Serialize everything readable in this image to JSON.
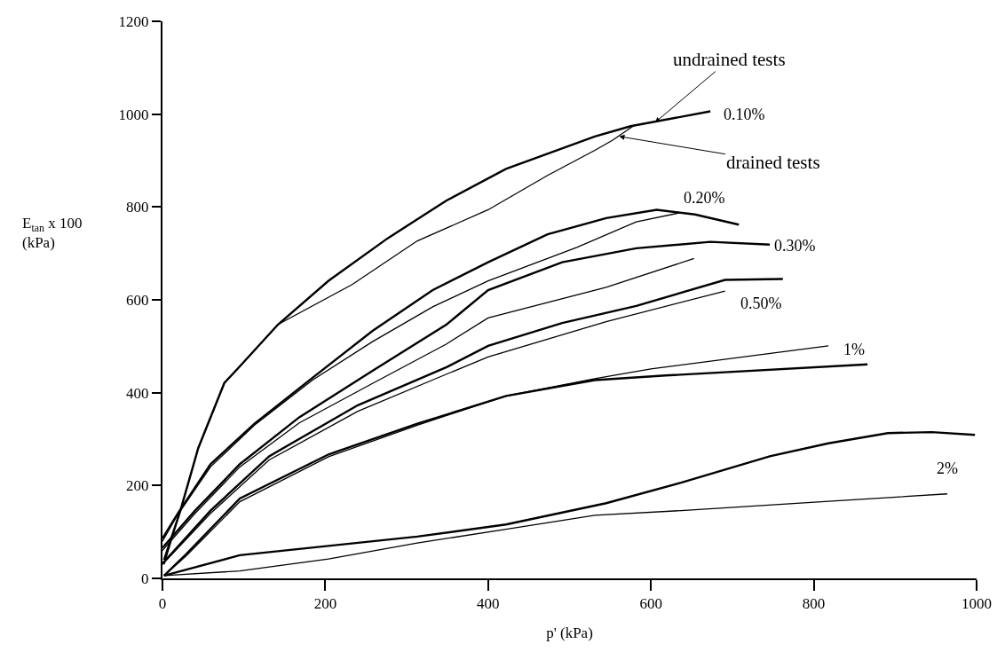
{
  "chart_data": {
    "type": "line",
    "xlabel": "p' (kPa)",
    "ylabel": "E$_{tan}$ x 100\n(kPa)",
    "xlim": [
      0,
      1000
    ],
    "xticks": [
      0,
      200,
      400,
      600,
      800,
      1000
    ],
    "ylim": [
      0,
      1200
    ],
    "yticks": [
      0,
      200,
      400,
      600,
      800,
      1000,
      1200
    ],
    "marker": "none",
    "line_style": "solid",
    "series": [
      {
        "color": "#000000",
        "x": [
          2,
          22,
          44,
          76,
          92,
          142,
          204,
          277,
          349,
          422,
          531,
          575,
          673
        ],
        "values": [
          40,
          146,
          281,
          421,
          451,
          547,
          641,
          733,
          814,
          882,
          952,
          974,
          1006
        ]
      },
      {
        "color": "#000000",
        "x": [
          2,
          22,
          44,
          76,
          92,
          142,
          233,
          313,
          400,
          473,
          531,
          553,
          578
        ],
        "values": [
          30,
          146,
          281,
          421,
          451,
          547,
          633,
          727,
          794,
          868,
          922,
          944,
          974
        ]
      },
      {
        "color": "#000000",
        "x": [
          0,
          19,
          59,
          113,
          185,
          258,
          332,
          400,
          473,
          545,
          607,
          654,
          708
        ],
        "values": [
          86,
          140,
          246,
          333,
          433,
          533,
          621,
          681,
          741,
          776,
          794,
          784,
          762
        ]
      },
      {
        "color": "#000000",
        "x": [
          0,
          19,
          59,
          113,
          185,
          258,
          332,
          400,
          509,
          582,
          637
        ],
        "values": [
          80,
          138,
          240,
          330,
          428,
          510,
          585,
          641,
          713,
          768,
          788
        ]
      },
      {
        "color": "#000000",
        "x": [
          0,
          40,
          95,
          168,
          258,
          349,
          400,
          491,
          582,
          673,
          746
        ],
        "values": [
          66,
          146,
          246,
          347,
          447,
          547,
          621,
          681,
          711,
          725,
          719
        ]
      },
      {
        "color": "#000000",
        "x": [
          0,
          40,
          95,
          168,
          258,
          349,
          400,
          545,
          653
        ],
        "values": [
          60,
          140,
          240,
          335,
          420,
          505,
          561,
          627,
          689
        ]
      },
      {
        "color": "#000000",
        "x": [
          0,
          59,
          131,
          240,
          349,
          400,
          491,
          582,
          691,
          762
        ],
        "values": [
          32,
          146,
          263,
          373,
          455,
          501,
          550,
          587,
          643,
          645
        ]
      },
      {
        "color": "#000000",
        "x": [
          0,
          59,
          131,
          240,
          349,
          400,
          545,
          691
        ],
        "values": [
          30,
          140,
          255,
          360,
          440,
          477,
          553,
          619
        ]
      },
      {
        "color": "#000000",
        "x": [
          2,
          29,
          95,
          204,
          313,
          422,
          531,
          618,
          866
        ],
        "values": [
          6,
          52,
          172,
          267,
          333,
          393,
          427,
          437,
          461
        ]
      },
      {
        "color": "#000000",
        "x": [
          2,
          29,
          95,
          204,
          313,
          422,
          531,
          600,
          818
        ],
        "values": [
          6,
          48,
          165,
          262,
          330,
          393,
          430,
          451,
          501
        ]
      },
      {
        "color": "#000000",
        "x": [
          2,
          95,
          204,
          313,
          422,
          545,
          637,
          746,
          818,
          891,
          945,
          998
        ],
        "values": [
          6,
          50,
          70,
          90,
          116,
          162,
          206,
          263,
          291,
          313,
          315,
          309
        ]
      },
      {
        "color": "#000000",
        "x": [
          2,
          95,
          204,
          313,
          422,
          531,
          637,
          818,
          964
        ],
        "values": [
          6,
          16,
          42,
          76,
          106,
          136,
          146,
          166,
          182
        ]
      }
    ],
    "annotations": [
      {
        "text": "0.10%",
        "x": 673,
        "y": 1006
      },
      {
        "text": "0.20%",
        "x": 654,
        "y": 784
      },
      {
        "text": "0.30%",
        "x": 746,
        "y": 719
      },
      {
        "text": "0.50%",
        "x": 691,
        "y": 619
      },
      {
        "text": "1%",
        "x": 818,
        "y": 501
      },
      {
        "text": "2%",
        "x": 964,
        "y": 182
      },
      {
        "text": "undrained tests",
        "x": 605,
        "y": 982
      },
      {
        "text": "drained tests",
        "x": 561,
        "y": 952
      }
    ]
  }
}
